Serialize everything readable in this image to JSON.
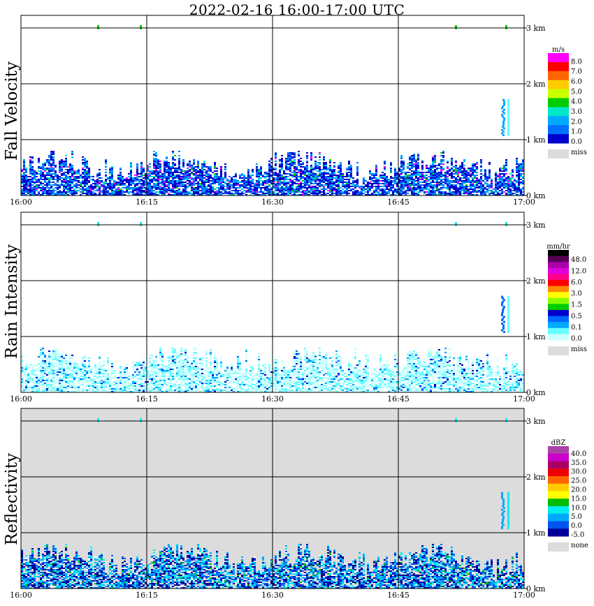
{
  "title": "2022-02-16   16:00-17:00 UTC",
  "colors": {
    "background": "#ffffff",
    "missing": "#dcdcdc",
    "grid": "#000000"
  },
  "chart_data": [
    {
      "type": "heatmap",
      "ylabel": "Fall Velocity",
      "x_ticks": [
        "16:00",
        "16:15",
        "16:30",
        "16:45",
        "17:00"
      ],
      "x_range_minutes": [
        0,
        60
      ],
      "y_ticks": [
        "0 km",
        "1 km",
        "2 km",
        "3 km"
      ],
      "y_range_km": [
        0,
        3.5
      ],
      "legend": {
        "unit": "m/s",
        "labels": [
          "8.0",
          "7.0",
          "6.0",
          "5.0",
          "4.0",
          "3.0",
          "2.0",
          "1.0",
          "0.0"
        ],
        "colors": [
          "#ff00ff",
          "#ff0000",
          "#ff6600",
          "#ffcc00",
          "#ccff00",
          "#00cc00",
          "#00e8c8",
          "#00aaff",
          "#0070ff",
          "#0000cc"
        ],
        "missing_label": "miss"
      },
      "echo_top_km": 0.8
    },
    {
      "type": "heatmap",
      "ylabel": "Rain Intensity",
      "x_ticks": [
        "16:00",
        "16:15",
        "16:30",
        "16:45",
        "17:00"
      ],
      "x_range_minutes": [
        0,
        60
      ],
      "y_ticks": [
        "0 km",
        "1 km",
        "2 km",
        "3 km"
      ],
      "y_range_km": [
        0,
        3.5
      ],
      "legend": {
        "unit": "mm/hr",
        "labels": [
          "48.0",
          "12.0",
          "6.0",
          "3.0",
          "1.5",
          "0.5",
          "0.1",
          "0.0"
        ],
        "colors": [
          "#000000",
          "#550055",
          "#aa00aa",
          "#dd00dd",
          "#ff0088",
          "#ff0000",
          "#ff8800",
          "#ffff00",
          "#88ff00",
          "#00cc00",
          "#0000cc",
          "#0066ff",
          "#00aaff",
          "#66ffff",
          "#ccffff"
        ],
        "missing_label": "miss"
      },
      "echo_top_km": 0.8
    },
    {
      "type": "heatmap",
      "ylabel": "Reflectivity",
      "x_ticks": [
        "16:00",
        "16:15",
        "16:30",
        "16:45",
        "17:00"
      ],
      "x_range_minutes": [
        0,
        60
      ],
      "y_ticks": [
        "0 km",
        "1 km",
        "2 km",
        "3 km"
      ],
      "y_range_km": [
        0,
        3.5
      ],
      "legend": {
        "unit": "dBZ",
        "labels": [
          "40.0",
          "35.0",
          "30.0",
          "25.0",
          "20.0",
          "15.0",
          "10.0",
          "5.0",
          "0.0",
          "-5.0"
        ],
        "colors": [
          "#aa44aa",
          "#cc00cc",
          "#aa0066",
          "#ee0000",
          "#ff6600",
          "#ffcc00",
          "#ffff00",
          "#00bb00",
          "#00eeee",
          "#00aaff",
          "#0055ee",
          "#000099"
        ],
        "missing_label": "none"
      },
      "echo_top_km": 0.8
    }
  ]
}
